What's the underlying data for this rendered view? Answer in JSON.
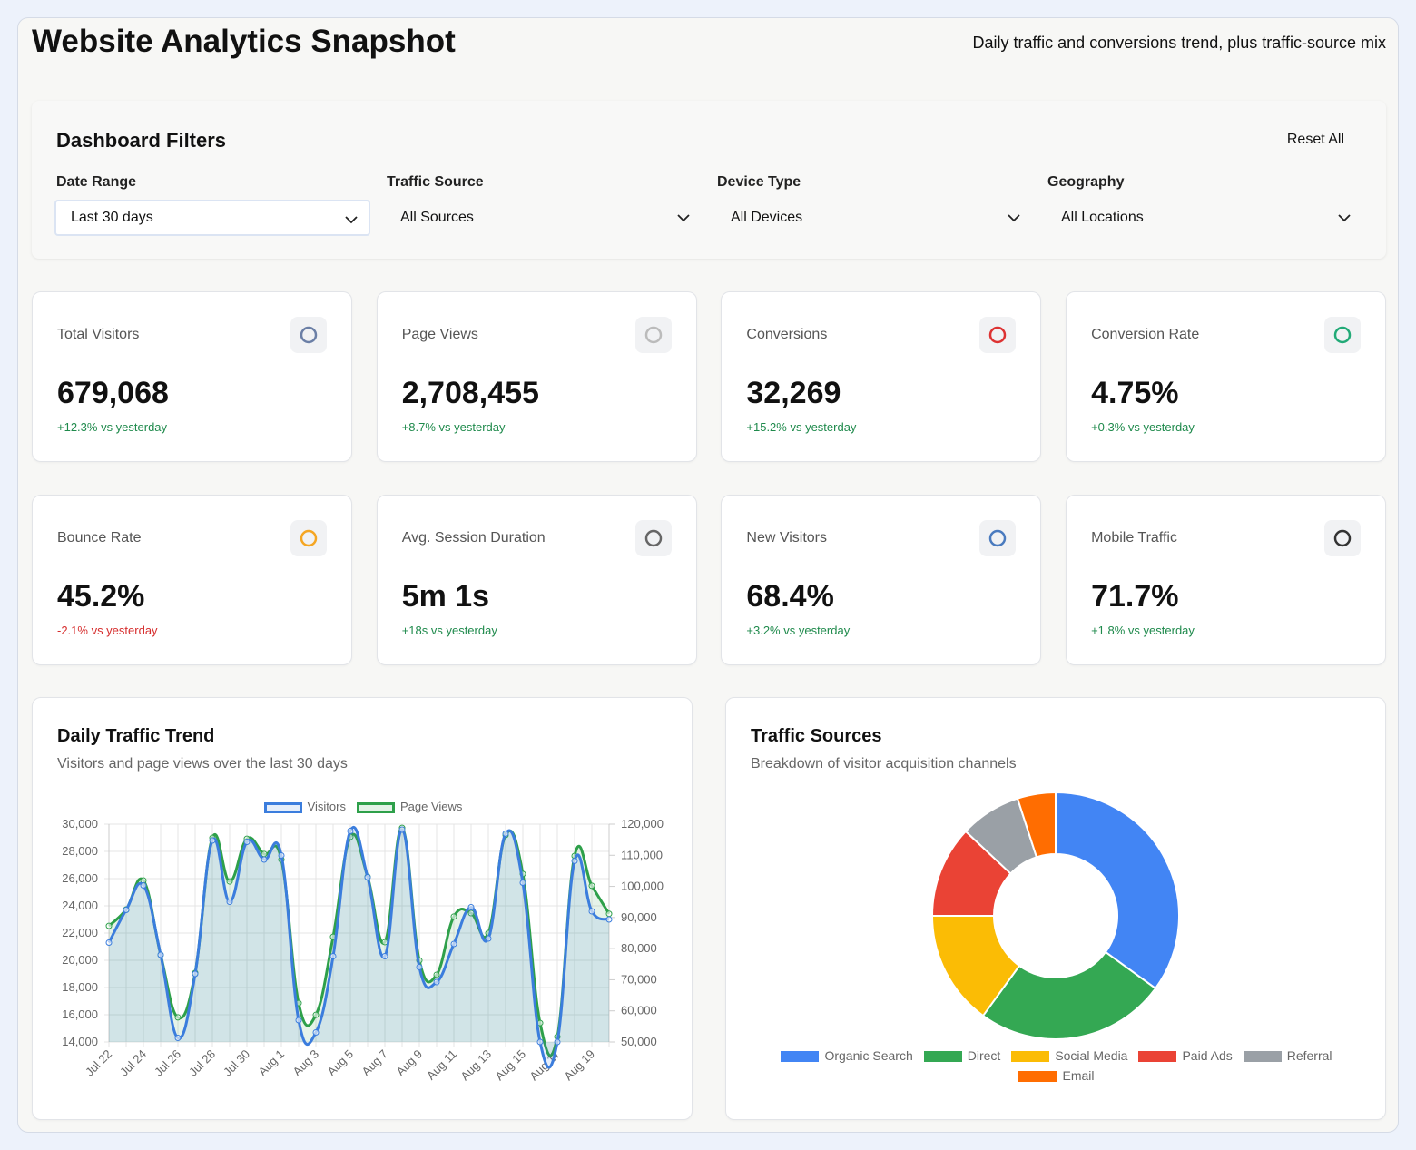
{
  "header": {
    "title": "Website Analytics Snapshot",
    "subtitle": "Daily traffic and conversions trend, plus traffic-source mix"
  },
  "filters": {
    "title": "Dashboard Filters",
    "reset": "Reset All",
    "items": [
      {
        "label": "Date Range",
        "value": "Last 30 days",
        "focused": true
      },
      {
        "label": "Traffic Source",
        "value": "All Sources",
        "focused": false
      },
      {
        "label": "Device Type",
        "value": "All Devices",
        "focused": false
      },
      {
        "label": "Geography",
        "value": "All Locations",
        "focused": false
      }
    ]
  },
  "kpis": [
    {
      "label": "Total Visitors",
      "value": "679,068",
      "change": "+12.3% vs yesterday",
      "trend": "up"
    },
    {
      "label": "Page Views",
      "value": "2,708,455",
      "change": "+8.7% vs yesterday",
      "trend": "up"
    },
    {
      "label": "Conversions",
      "value": "32,269",
      "change": "+15.2% vs yesterday",
      "trend": "up"
    },
    {
      "label": "Conversion Rate",
      "value": "4.75%",
      "change": "+0.3% vs yesterday",
      "trend": "up"
    },
    {
      "label": "Bounce Rate",
      "value": "45.2%",
      "change": "-2.1% vs yesterday",
      "trend": "down"
    },
    {
      "label": "Avg. Session Duration",
      "value": "5m 1s",
      "change": "+18s vs yesterday",
      "trend": "up"
    },
    {
      "label": "New Visitors",
      "value": "68.4%",
      "change": "+3.2% vs yesterday",
      "trend": "up"
    },
    {
      "label": "Mobile Traffic",
      "value": "71.7%",
      "change": "+1.8% vs yesterday",
      "trend": "up"
    }
  ],
  "chart_data": [
    {
      "type": "line",
      "title": "Daily Traffic Trend",
      "subtitle": "Visitors and page views over the last 30 days",
      "categories": [
        "Jul 22",
        null,
        "Jul 24",
        null,
        "Jul 26",
        null,
        "Jul 28",
        null,
        "Jul 30",
        null,
        "Aug 1",
        null,
        "Aug 3",
        null,
        "Aug 5",
        null,
        "Aug 7",
        null,
        "Aug 9",
        null,
        "Aug 11",
        null,
        "Aug 13",
        null,
        "Aug 15",
        null,
        "Aug 17",
        null,
        "Aug 19",
        null
      ],
      "series": [
        {
          "name": "Visitors",
          "color": "#3b7ddd",
          "fill": true,
          "values": [
            21300,
            23700,
            25500,
            20400,
            14300,
            19000,
            28800,
            24300,
            28700,
            27400,
            27700,
            15600,
            14700,
            20300,
            29500,
            26100,
            20300,
            29600,
            19500,
            18400,
            21200,
            23900,
            21600,
            29300,
            25700,
            14000,
            14000,
            27300,
            23600,
            23000
          ]
        },
        {
          "name": "Page Views",
          "color": "#2ea04a",
          "fill": true,
          "axis": "y2",
          "values": [
            87300,
            92600,
            101900,
            78000,
            57900,
            72200,
            115600,
            101600,
            115300,
            110400,
            108600,
            62500,
            58700,
            83800,
            115900,
            103100,
            82100,
            118800,
            76200,
            71600,
            90300,
            91400,
            85000,
            116500,
            104000,
            56100,
            51700,
            109800,
            100200,
            91200
          ]
        }
      ],
      "ylim": [
        14000,
        30000
      ],
      "yticks": [
        {
          "value": 14000,
          "label": "14,000"
        },
        {
          "value": 16000,
          "label": "16,000"
        },
        {
          "value": 18000,
          "label": "18,000"
        },
        {
          "value": 20000,
          "label": "20,000"
        },
        {
          "value": 22000,
          "label": "22,000"
        },
        {
          "value": 24000,
          "label": "24,000"
        },
        {
          "value": 26000,
          "label": "26,000"
        },
        {
          "value": 28000,
          "label": "28,000"
        },
        {
          "value": 30000,
          "label": "30,000"
        }
      ],
      "y2lim": [
        50000,
        120000
      ],
      "y2ticks": [
        {
          "value": 50000,
          "label": "50,000"
        },
        {
          "value": 60000,
          "label": "60,000"
        },
        {
          "value": 70000,
          "label": "70,000"
        },
        {
          "value": 80000,
          "label": "80,000"
        },
        {
          "value": 90000,
          "label": "90,000"
        },
        {
          "value": 100000,
          "label": "100,000"
        },
        {
          "value": 110000,
          "label": "110,000"
        },
        {
          "value": 120000,
          "label": "120,000"
        }
      ],
      "grid": true,
      "legend": "top"
    },
    {
      "type": "doughnut",
      "title": "Traffic Sources",
      "subtitle": "Breakdown of visitor acquisition channels",
      "categories": [
        "Organic Search",
        "Direct",
        "Social Media",
        "Paid Ads",
        "Referral",
        "Email"
      ],
      "values": [
        35,
        25,
        15,
        12,
        8,
        5
      ],
      "colors": [
        "#4285f4",
        "#34a853",
        "#fbbc05",
        "#ea4335",
        "#9aa0a6",
        "#ff6d01"
      ],
      "legend": "bottom"
    }
  ]
}
